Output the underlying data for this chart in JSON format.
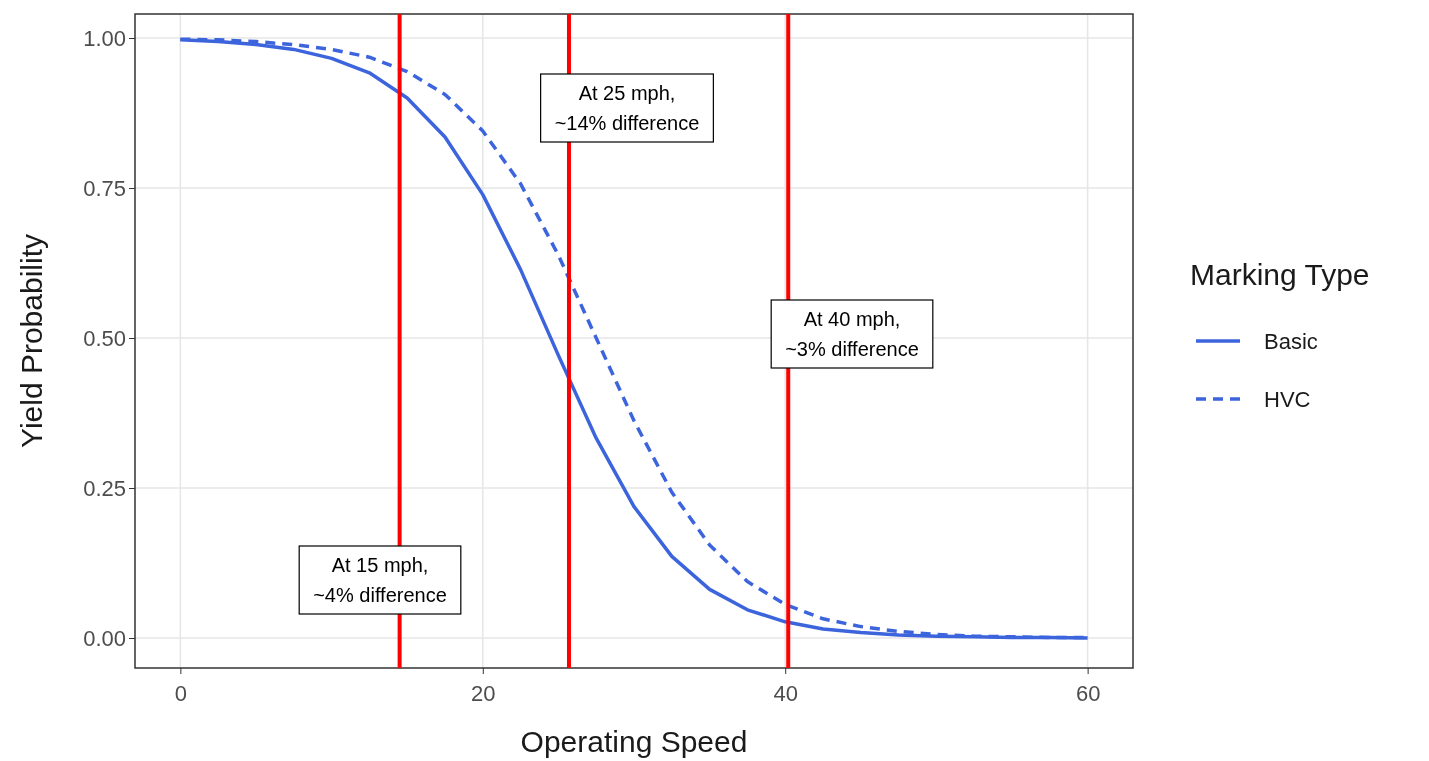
{
  "chart_data": {
    "type": "line",
    "xlabel": "Operating Speed",
    "ylabel": "Yield Probability",
    "legend_title": "Marking Type",
    "legend": "right",
    "grid": true,
    "x": [
      0,
      2.5,
      5,
      7.5,
      10,
      12.5,
      15,
      17.5,
      20,
      22.5,
      25,
      27.5,
      30,
      32.5,
      35,
      37.5,
      40,
      42.5,
      45,
      47.5,
      50,
      52.5,
      55,
      57.5,
      60
    ],
    "series": [
      {
        "name": "Basic",
        "color": "#3c64dc",
        "line_style": "solid",
        "values": [
          0.997,
          0.994,
          0.989,
          0.981,
          0.966,
          0.942,
          0.9,
          0.835,
          0.739,
          0.614,
          0.471,
          0.333,
          0.219,
          0.136,
          0.081,
          0.047,
          0.027,
          0.015,
          0.009,
          0.005,
          0.003,
          0.002,
          0.001,
          0.001,
          0
        ]
      },
      {
        "name": "HVC",
        "color": "#3c64dc",
        "line_style": "dashed",
        "values": [
          0.998,
          0.997,
          0.994,
          0.989,
          0.981,
          0.968,
          0.944,
          0.906,
          0.845,
          0.757,
          0.638,
          0.5,
          0.362,
          0.243,
          0.155,
          0.094,
          0.056,
          0.032,
          0.019,
          0.011,
          0.006,
          0.003,
          0.002,
          0.001,
          0.001
        ]
      }
    ],
    "xlim": [
      -3,
      63
    ],
    "xticks": [
      0,
      20,
      40,
      60
    ],
    "ylim": [
      -0.05,
      1.04
    ],
    "yticks": [
      {
        "value": 0,
        "label": "0.00"
      },
      {
        "value": 0.25,
        "label": "0.25"
      },
      {
        "value": 0.5,
        "label": "0.50"
      },
      {
        "value": 0.75,
        "label": "0.75"
      },
      {
        "value": 1,
        "label": "1.00"
      }
    ],
    "ref_lines": [
      {
        "axis": "x",
        "value": 14.5,
        "color": "#ff0000"
      },
      {
        "axis": "x",
        "value": 25.7,
        "color": "#ff0000"
      },
      {
        "axis": "x",
        "value": 40.2,
        "color": "#ff0000"
      }
    ],
    "annotations": [
      "At 25 mph,\n~14% difference",
      "At 40 mph,\n~3% difference",
      "At 15 mph,\n~4% difference"
    ]
  }
}
